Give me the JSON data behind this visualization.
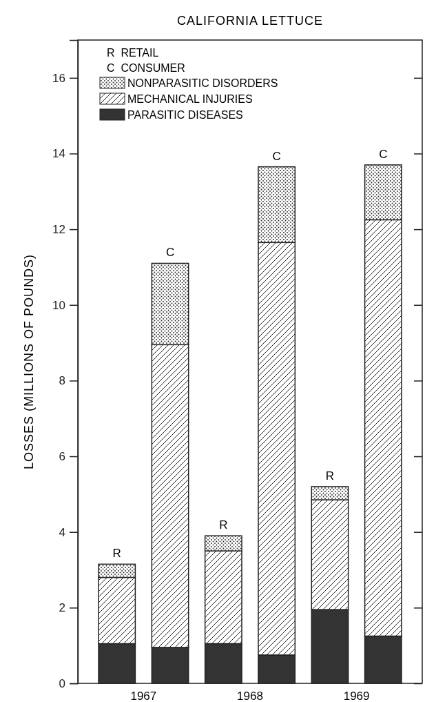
{
  "chart_data": {
    "type": "bar",
    "title": "CALIFORNIA LETTUCE",
    "ylabel": "LOSSES (MILLIONS OF POUNDS)",
    "categories": [
      null,
      null,
      null,
      null,
      null,
      null
    ],
    "stacked": true,
    "ylim": [
      0,
      17
    ],
    "yticks": [
      0,
      2,
      4,
      6,
      8,
      10,
      12,
      14,
      16
    ],
    "legend": "top left",
    "grid": false,
    "series": [
      {
        "name": "PARASITIC DISEASES",
        "color": "#333333",
        "values": [
          1.05,
          0.95,
          1.05,
          0.75,
          1.95,
          1.25
        ]
      },
      {
        "name": "MECHANICAL INJURIES",
        "color": "#222222",
        "values": [
          1.75,
          8.0,
          2.45,
          10.9,
          2.9,
          11.0
        ]
      },
      {
        "name": "NONPARASITIC DISORDERS",
        "color": "#222222",
        "values": [
          0.35,
          2.15,
          0.4,
          2.0,
          0.35,
          1.45
        ],
        "value_labels": [
          "R",
          "C",
          "R",
          "C",
          "R",
          "C"
        ]
      }
    ],
    "annotations": [
      "R  RETAIL",
      "C  CONSUMER",
      "1967",
      "1968",
      "1969"
    ]
  }
}
